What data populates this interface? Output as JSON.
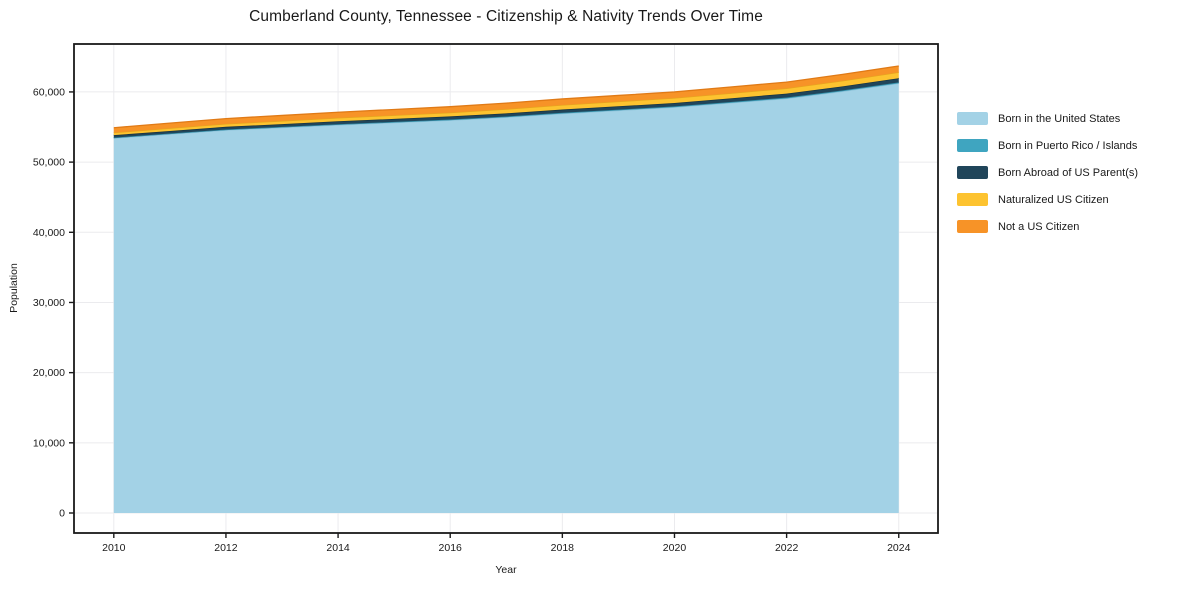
{
  "title": "Cumberland County, Tennessee - Citizenship & Nativity Trends Over Time",
  "chart_data": {
    "type": "area",
    "stacked": true,
    "title": "Cumberland County, Tennessee - Citizenship & Nativity Trends Over Time",
    "xlabel": "Year",
    "ylabel": "Population",
    "x": [
      2010,
      2011,
      2012,
      2013,
      2014,
      2015,
      2016,
      2017,
      2018,
      2019,
      2020,
      2021,
      2022,
      2023,
      2024
    ],
    "series": [
      {
        "name": "Born in the United States",
        "color": "#a3d2e6",
        "edge": "#8fc3da",
        "values": [
          53410,
          53995,
          54560,
          54925,
          55300,
          55625,
          55960,
          56390,
          56915,
          57365,
          57815,
          58440,
          59065,
          60090,
          61220
        ]
      },
      {
        "name": "Born in Puerto Rico / Islands",
        "color": "#3fa5c0",
        "edge": "#338ba4",
        "values": [
          80,
          85,
          90,
          95,
          100,
          105,
          110,
          110,
          115,
          120,
          125,
          130,
          135,
          140,
          150
        ]
      },
      {
        "name": "Born Abroad of US Parent(s)",
        "color": "#20455a",
        "edge": "#16313f",
        "values": [
          350,
          360,
          380,
          400,
          420,
          430,
          440,
          450,
          460,
          470,
          480,
          520,
          560,
          570,
          580
        ]
      },
      {
        "name": "Naturalized US Citizen",
        "color": "#fdc330",
        "edge": "#e5a61d",
        "values": [
          360,
          390,
          420,
          450,
          480,
          520,
          550,
          600,
          650,
          680,
          710,
          730,
          750,
          800,
          850
        ]
      },
      {
        "name": "Not a US Citizen",
        "color": "#f79327",
        "edge": "#e07a16",
        "values": [
          700,
          720,
          750,
          780,
          800,
          820,
          840,
          850,
          860,
          865,
          870,
          880,
          890,
          900,
          900
        ]
      }
    ],
    "xlim": [
      2009.29,
      2024.7
    ],
    "ylim": [
      -2850,
      66830
    ],
    "x_ticks": [
      2010,
      2012,
      2014,
      2016,
      2018,
      2020,
      2022,
      2024
    ],
    "y_ticks": [
      0,
      10000,
      20000,
      30000,
      40000,
      50000,
      60000
    ],
    "y_tick_labels": [
      "0",
      "10,000",
      "20,000",
      "30,000",
      "40,000",
      "50,000",
      "60,000"
    ],
    "grid": true,
    "grid_color": "#ebebee",
    "axis_color": "#1a1a1a",
    "legend_position": "right"
  }
}
